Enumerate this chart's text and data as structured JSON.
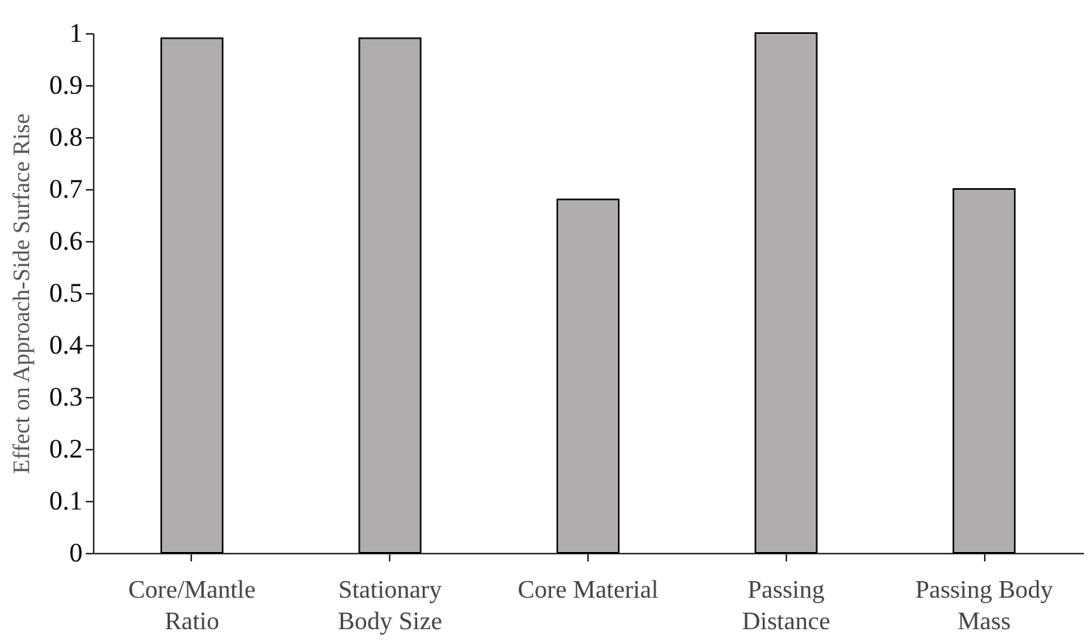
{
  "chart_data": {
    "type": "bar",
    "ylabel": "Effect  on Approach-Side  Surface Rise",
    "categories": [
      "Core/Mantle\nRatio",
      "Stationary\nBody Size",
      "Core Material",
      "Passing\nDistance",
      "Passing Body\nMass"
    ],
    "values": [
      0.99,
      0.99,
      0.68,
      1.0,
      0.7
    ],
    "color": "#b0adac",
    "ylim": [
      0,
      1
    ],
    "yticks": [
      0,
      0.1,
      0.2,
      0.3,
      0.4,
      0.5,
      0.6,
      0.7,
      0.8,
      0.9,
      1
    ],
    "grid": false
  }
}
